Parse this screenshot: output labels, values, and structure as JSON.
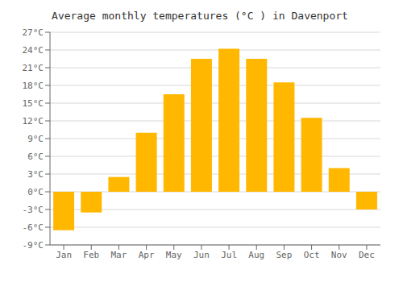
{
  "chart_data": {
    "type": "bar",
    "title": "Average monthly temperatures (°C ) in Davenport",
    "categories": [
      "Jan",
      "Feb",
      "Mar",
      "Apr",
      "May",
      "Jun",
      "Jul",
      "Aug",
      "Sep",
      "Oct",
      "Nov",
      "Dec"
    ],
    "values": [
      -6.5,
      -3.5,
      2.5,
      10.0,
      16.5,
      22.5,
      24.2,
      22.5,
      18.5,
      12.5,
      4.0,
      -3.0
    ],
    "color": "#FFB700",
    "ylim": [
      -9,
      27
    ],
    "yticks": [
      {
        "value": -9,
        "label": "-9°C"
      },
      {
        "value": -6,
        "label": "-6°C"
      },
      {
        "value": -3,
        "label": "-3°C"
      },
      {
        "value": 0,
        "label": "0°C"
      },
      {
        "value": 3,
        "label": "3°C"
      },
      {
        "value": 6,
        "label": "6°C"
      },
      {
        "value": 9,
        "label": "9°C"
      },
      {
        "value": 12,
        "label": "12°C"
      },
      {
        "value": 15,
        "label": "15°C"
      },
      {
        "value": 18,
        "label": "18°C"
      },
      {
        "value": 21,
        "label": "21°C"
      },
      {
        "value": 24,
        "label": "24°C"
      },
      {
        "value": 27,
        "label": "27°C"
      }
    ],
    "grid": true
  }
}
